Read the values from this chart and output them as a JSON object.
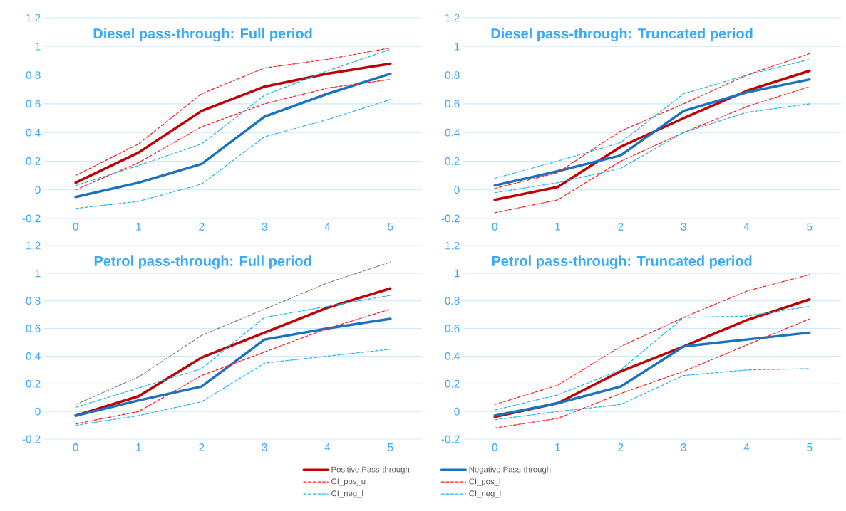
{
  "chart_data": [
    {
      "type": "line",
      "title": "Diesel pass-through: Full period",
      "categories": [
        "0",
        "1",
        "2",
        "3",
        "4",
        "5"
      ],
      "ylim": [
        -0.2,
        1.2
      ],
      "yticks": [
        -0.2,
        0,
        0.2,
        0.4,
        0.6,
        0.8,
        1,
        1.2
      ],
      "grid": "y",
      "legend": false,
      "series": [
        {
          "color": "#c00000",
          "line_style": "solid",
          "values": [
            0.05,
            0.26,
            0.55,
            0.72,
            0.81,
            0.88
          ]
        },
        {
          "color": "#1a72c0",
          "line_style": "solid",
          "values": [
            -0.05,
            0.05,
            0.18,
            0.51,
            0.67,
            0.81
          ]
        },
        {
          "color": "#ff1a1a",
          "line_style": "dashed",
          "values": [
            0.1,
            0.32,
            0.67,
            0.85,
            0.91,
            0.99
          ]
        },
        {
          "color": "#ff1a1a",
          "line_style": "dashed",
          "values": [
            0.0,
            0.19,
            0.44,
            0.6,
            0.71,
            0.77
          ]
        },
        {
          "color": "#1fb4ec",
          "line_style": "dashed",
          "values": [
            0.03,
            0.17,
            0.32,
            0.66,
            0.83,
            0.98
          ]
        },
        {
          "color": "#1fb4ec",
          "line_style": "dashed",
          "values": [
            -0.13,
            -0.08,
            0.04,
            0.37,
            0.49,
            0.63
          ]
        }
      ]
    },
    {
      "type": "line",
      "title": "Diesel pass-through: Truncated period",
      "categories": [
        "0",
        "1",
        "2",
        "3",
        "4",
        "5"
      ],
      "ylim": [
        -0.2,
        1.2
      ],
      "yticks": [
        -0.2,
        0,
        0.2,
        0.4,
        0.6,
        0.8,
        1,
        1.2
      ],
      "grid": "y",
      "legend": false,
      "series": [
        {
          "color": "#c00000",
          "line_style": "solid",
          "values": [
            -0.07,
            0.02,
            0.3,
            0.5,
            0.69,
            0.83
          ]
        },
        {
          "color": "#1a72c0",
          "line_style": "solid",
          "values": [
            0.03,
            0.13,
            0.24,
            0.55,
            0.68,
            0.77
          ]
        },
        {
          "color": "#ff1a1a",
          "line_style": "dashed",
          "values": [
            0.01,
            0.12,
            0.41,
            0.6,
            0.8,
            0.95
          ]
        },
        {
          "color": "#ff1a1a",
          "line_style": "dashed",
          "values": [
            -0.16,
            -0.07,
            0.2,
            0.4,
            0.58,
            0.72
          ]
        },
        {
          "color": "#1fb4ec",
          "line_style": "dashed",
          "values": [
            0.08,
            0.2,
            0.33,
            0.67,
            0.8,
            0.91
          ]
        },
        {
          "color": "#1fb4ec",
          "line_style": "dashed",
          "values": [
            -0.02,
            0.05,
            0.15,
            0.4,
            0.54,
            0.6
          ]
        }
      ]
    },
    {
      "type": "line",
      "title": "Petrol pass-through: Full period",
      "categories": [
        "0",
        "1",
        "2",
        "3",
        "4",
        "5"
      ],
      "ylim": [
        -0.2,
        1.2
      ],
      "yticks": [
        -0.2,
        0,
        0.2,
        0.4,
        0.6,
        0.8,
        1,
        1.2
      ],
      "grid": "y",
      "legend": false,
      "series": [
        {
          "color": "#c00000",
          "line_style": "solid",
          "values": [
            -0.03,
            0.11,
            0.39,
            0.57,
            0.75,
            0.89
          ]
        },
        {
          "color": "#1a72c0",
          "line_style": "solid",
          "values": [
            -0.03,
            0.08,
            0.18,
            0.52,
            0.6,
            0.67
          ]
        },
        {
          "color": "#808080",
          "line_style": "dashed",
          "values": [
            0.05,
            0.25,
            0.55,
            0.74,
            0.93,
            1.08
          ]
        },
        {
          "color": "#ff1a1a",
          "line_style": "dashed",
          "values": [
            -0.09,
            0.0,
            0.26,
            0.43,
            0.6,
            0.74
          ]
        },
        {
          "color": "#1fb4ec",
          "line_style": "dashed",
          "values": [
            0.03,
            0.17,
            0.31,
            0.68,
            0.76,
            0.84
          ]
        },
        {
          "color": "#1fb4ec",
          "line_style": "dashed",
          "values": [
            -0.1,
            -0.03,
            0.07,
            0.35,
            0.4,
            0.45
          ]
        }
      ]
    },
    {
      "type": "line",
      "title": "Petrol pass-through: Truncated period",
      "categories": [
        "0",
        "1",
        "2",
        "3",
        "4",
        "5"
      ],
      "ylim": [
        -0.2,
        1.2
      ],
      "yticks": [
        -0.2,
        0,
        0.2,
        0.4,
        0.6,
        0.8,
        1,
        1.2
      ],
      "grid": "y",
      "legend": "bottom",
      "series": [
        {
          "name": "Positive Pass-through",
          "color": "#c00000",
          "line_style": "solid",
          "values": [
            -0.04,
            0.06,
            0.29,
            0.47,
            0.66,
            0.81
          ]
        },
        {
          "name": "Negative Pass-through",
          "color": "#1a72c0",
          "line_style": "solid",
          "values": [
            -0.03,
            0.06,
            0.18,
            0.47,
            0.52,
            0.57
          ]
        },
        {
          "name": "CI_pos_u",
          "color": "#ff1a1a",
          "line_style": "dashed",
          "values": [
            0.05,
            0.19,
            0.47,
            0.68,
            0.87,
            0.99
          ]
        },
        {
          "name": "CI_pos_l",
          "color": "#ff1a1a",
          "line_style": "dashed",
          "values": [
            -0.12,
            -0.05,
            0.13,
            0.29,
            0.48,
            0.67
          ]
        },
        {
          "name": "CI_neg_l",
          "color": "#1fb4ec",
          "line_style": "dashed",
          "values": [
            0.01,
            0.12,
            0.3,
            0.68,
            0.69,
            0.76
          ]
        },
        {
          "name": "CI_neg_l",
          "color": "#1fb4ec",
          "line_style": "dashed",
          "values": [
            -0.06,
            0.0,
            0.05,
            0.26,
            0.3,
            0.31
          ]
        }
      ]
    }
  ]
}
